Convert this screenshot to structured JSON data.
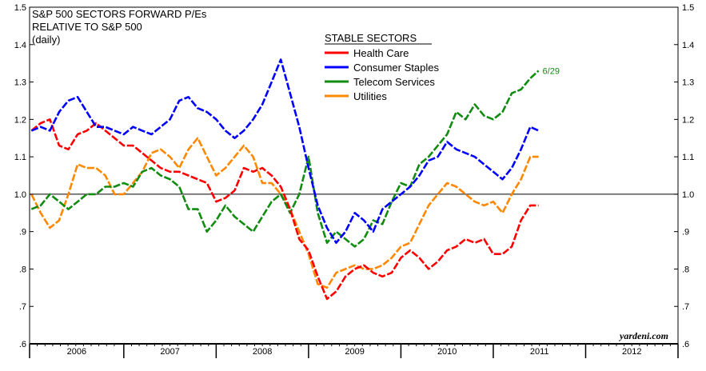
{
  "chart_data": {
    "type": "line",
    "title": [
      "S&P 500 SECTORS FORWARD P/Es",
      "RELATIVE TO S&P 500",
      "(daily)"
    ],
    "legend_title": "STABLE SECTORS",
    "legend_placement": "top-center",
    "source": "yardeni.com",
    "reference_line": 1.0,
    "annotation": {
      "text": "6/29",
      "series": "Telecom Services",
      "x": 2011.49,
      "y": 1.33,
      "color": "#118c11"
    },
    "ylim": [
      0.6,
      1.5
    ],
    "xlim": [
      2005.98,
      2013.0
    ],
    "yticks": [
      {
        "v": 0.6,
        "label": ".6"
      },
      {
        "v": 0.7,
        "label": ".7"
      },
      {
        "v": 0.8,
        "label": ".8"
      },
      {
        "v": 0.9,
        "label": ".9"
      },
      {
        "v": 1.0,
        "label": "1.0"
      },
      {
        "v": 1.1,
        "label": "1.1"
      },
      {
        "v": 1.2,
        "label": "1.2"
      },
      {
        "v": 1.3,
        "label": "1.3"
      },
      {
        "v": 1.4,
        "label": "1.4"
      },
      {
        "v": 1.5,
        "label": "1.5"
      }
    ],
    "xcategories": [
      "2006",
      "2007",
      "2008",
      "2009",
      "2010",
      "2011",
      "2012"
    ],
    "year_starts": [
      2005.98,
      2007,
      2008,
      2009,
      2010,
      2011,
      2012,
      2013
    ],
    "series": [
      {
        "name": "Health Care",
        "color": "#ff0000",
        "x": [
          2006.0,
          2006.1,
          2006.2,
          2006.3,
          2006.4,
          2006.5,
          2006.6,
          2006.7,
          2006.8,
          2006.9,
          2007.0,
          2007.1,
          2007.2,
          2007.3,
          2007.4,
          2007.5,
          2007.6,
          2007.7,
          2007.8,
          2007.9,
          2008.0,
          2008.1,
          2008.2,
          2008.3,
          2008.4,
          2008.5,
          2008.6,
          2008.7,
          2008.8,
          2008.9,
          2009.0,
          2009.1,
          2009.2,
          2009.3,
          2009.4,
          2009.5,
          2009.6,
          2009.7,
          2009.8,
          2009.9,
          2010.0,
          2010.1,
          2010.2,
          2010.3,
          2010.4,
          2010.5,
          2010.6,
          2010.7,
          2010.8,
          2010.9,
          2011.0,
          2011.1,
          2011.2,
          2011.3,
          2011.4,
          2011.49
        ],
        "y": [
          1.17,
          1.19,
          1.2,
          1.13,
          1.12,
          1.16,
          1.17,
          1.19,
          1.17,
          1.15,
          1.13,
          1.13,
          1.11,
          1.09,
          1.07,
          1.06,
          1.06,
          1.05,
          1.04,
          1.03,
          0.98,
          0.99,
          1.01,
          1.07,
          1.06,
          1.07,
          1.05,
          1.02,
          0.96,
          0.88,
          0.85,
          0.78,
          0.72,
          0.74,
          0.78,
          0.8,
          0.81,
          0.79,
          0.78,
          0.79,
          0.83,
          0.85,
          0.83,
          0.8,
          0.82,
          0.85,
          0.86,
          0.88,
          0.87,
          0.88,
          0.84,
          0.84,
          0.86,
          0.93,
          0.97,
          0.97
        ]
      },
      {
        "name": "Consumer Staples",
        "color": "#0000ff",
        "x": [
          2006.0,
          2006.1,
          2006.2,
          2006.3,
          2006.4,
          2006.5,
          2006.6,
          2006.7,
          2006.8,
          2006.9,
          2007.0,
          2007.1,
          2007.2,
          2007.3,
          2007.4,
          2007.5,
          2007.6,
          2007.7,
          2007.8,
          2007.9,
          2008.0,
          2008.1,
          2008.2,
          2008.3,
          2008.4,
          2008.5,
          2008.6,
          2008.7,
          2008.8,
          2008.9,
          2009.0,
          2009.1,
          2009.2,
          2009.3,
          2009.4,
          2009.5,
          2009.6,
          2009.7,
          2009.8,
          2009.9,
          2010.0,
          2010.1,
          2010.2,
          2010.3,
          2010.4,
          2010.5,
          2010.6,
          2010.7,
          2010.8,
          2010.9,
          2011.0,
          2011.1,
          2011.2,
          2011.3,
          2011.4,
          2011.49
        ],
        "y": [
          1.17,
          1.18,
          1.17,
          1.22,
          1.25,
          1.26,
          1.22,
          1.18,
          1.18,
          1.17,
          1.16,
          1.18,
          1.17,
          1.16,
          1.18,
          1.2,
          1.25,
          1.26,
          1.23,
          1.22,
          1.2,
          1.17,
          1.15,
          1.17,
          1.2,
          1.24,
          1.3,
          1.36,
          1.27,
          1.18,
          1.07,
          0.97,
          0.91,
          0.87,
          0.9,
          0.95,
          0.93,
          0.9,
          0.96,
          0.98,
          1.0,
          1.02,
          1.05,
          1.09,
          1.1,
          1.14,
          1.12,
          1.11,
          1.1,
          1.08,
          1.06,
          1.04,
          1.07,
          1.12,
          1.18,
          1.17
        ]
      },
      {
        "name": "Telecom Services",
        "color": "#118c11",
        "x": [
          2006.0,
          2006.1,
          2006.2,
          2006.3,
          2006.4,
          2006.5,
          2006.6,
          2006.7,
          2006.8,
          2006.9,
          2007.0,
          2007.1,
          2007.2,
          2007.3,
          2007.4,
          2007.5,
          2007.6,
          2007.7,
          2007.8,
          2007.9,
          2008.0,
          2008.1,
          2008.2,
          2008.3,
          2008.4,
          2008.5,
          2008.6,
          2008.7,
          2008.8,
          2008.9,
          2009.0,
          2009.1,
          2009.2,
          2009.3,
          2009.4,
          2009.5,
          2009.6,
          2009.7,
          2009.8,
          2009.9,
          2010.0,
          2010.1,
          2010.2,
          2010.3,
          2010.4,
          2010.5,
          2010.6,
          2010.7,
          2010.8,
          2010.9,
          2011.0,
          2011.1,
          2011.2,
          2011.3,
          2011.4,
          2011.49
        ],
        "y": [
          0.96,
          0.97,
          1.0,
          0.98,
          0.96,
          0.98,
          1.0,
          1.0,
          1.02,
          1.02,
          1.03,
          1.02,
          1.06,
          1.07,
          1.05,
          1.04,
          1.02,
          0.96,
          0.96,
          0.9,
          0.93,
          0.97,
          0.94,
          0.92,
          0.9,
          0.94,
          0.98,
          1.0,
          0.95,
          1.0,
          1.1,
          0.95,
          0.87,
          0.9,
          0.88,
          0.86,
          0.88,
          0.93,
          0.92,
          0.98,
          1.03,
          1.02,
          1.08,
          1.1,
          1.13,
          1.16,
          1.22,
          1.2,
          1.24,
          1.21,
          1.2,
          1.22,
          1.27,
          1.28,
          1.31,
          1.33
        ]
      },
      {
        "name": "Utilities",
        "color": "#ff8800",
        "x": [
          2006.0,
          2006.1,
          2006.2,
          2006.3,
          2006.4,
          2006.5,
          2006.6,
          2006.7,
          2006.8,
          2006.9,
          2007.0,
          2007.1,
          2007.2,
          2007.3,
          2007.4,
          2007.5,
          2007.6,
          2007.7,
          2007.8,
          2007.9,
          2008.0,
          2008.1,
          2008.2,
          2008.3,
          2008.4,
          2008.5,
          2008.6,
          2008.7,
          2008.8,
          2008.9,
          2009.0,
          2009.1,
          2009.2,
          2009.3,
          2009.4,
          2009.5,
          2009.6,
          2009.7,
          2009.8,
          2009.9,
          2010.0,
          2010.1,
          2010.2,
          2010.3,
          2010.4,
          2010.5,
          2010.6,
          2010.7,
          2010.8,
          2010.9,
          2011.0,
          2011.1,
          2011.2,
          2011.3,
          2011.4,
          2011.49
        ],
        "y": [
          1.0,
          0.95,
          0.91,
          0.93,
          1.0,
          1.08,
          1.07,
          1.07,
          1.05,
          1.0,
          1.0,
          1.03,
          1.06,
          1.11,
          1.12,
          1.1,
          1.07,
          1.12,
          1.15,
          1.1,
          1.05,
          1.07,
          1.1,
          1.13,
          1.1,
          1.03,
          1.03,
          1.0,
          0.96,
          0.9,
          0.84,
          0.76,
          0.75,
          0.79,
          0.8,
          0.81,
          0.8,
          0.8,
          0.81,
          0.83,
          0.86,
          0.87,
          0.92,
          0.97,
          1.0,
          1.03,
          1.02,
          1.0,
          0.98,
          0.97,
          0.98,
          0.95,
          1.0,
          1.04,
          1.1,
          1.1
        ]
      }
    ]
  }
}
